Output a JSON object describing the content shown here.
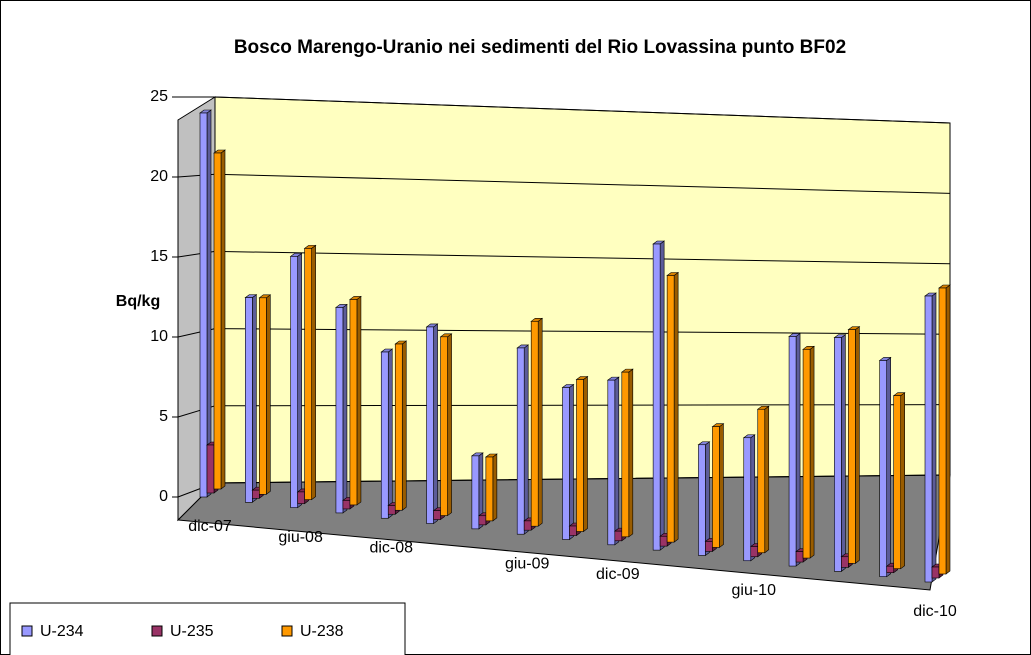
{
  "chart_data": {
    "type": "bar3d",
    "title": "Bosco Marengo-Uranio nei sedimenti del Rio Lovassina punto BF02",
    "y_label": "Bq/kg",
    "categories": [
      "dic-07",
      null,
      "giu-08",
      null,
      "dic-08",
      null,
      null,
      "giu-09",
      null,
      "dic-09",
      null,
      null,
      "giu-10",
      null,
      null,
      null,
      "dic-10"
    ],
    "series": [
      {
        "name": "U-234",
        "color": "#9999ff",
        "values": [
          24,
          12.5,
          15,
          12,
          9.5,
          11,
          4,
          10,
          8,
          8.5,
          15.5,
          5.5,
          6,
          11,
          11,
          10,
          13
        ]
      },
      {
        "name": "U-235",
        "color": "#993366",
        "values": [
          3,
          0.5,
          0.7,
          0.5,
          0.5,
          0.5,
          0.5,
          0.5,
          0.5,
          0.5,
          0.5,
          0.5,
          0.5,
          0.5,
          0.5,
          0.3,
          0.5
        ]
      },
      {
        "name": "U-238",
        "color": "#ff9900",
        "values": [
          21,
          12,
          15,
          12,
          9.5,
          10,
          3.5,
          11,
          8,
          8.5,
          13.5,
          6,
          7,
          10,
          11,
          8,
          13
        ]
      }
    ],
    "ylim": [
      0,
      25
    ],
    "yticks": [
      0,
      5,
      10,
      15,
      20,
      25
    ],
    "grid": true
  }
}
